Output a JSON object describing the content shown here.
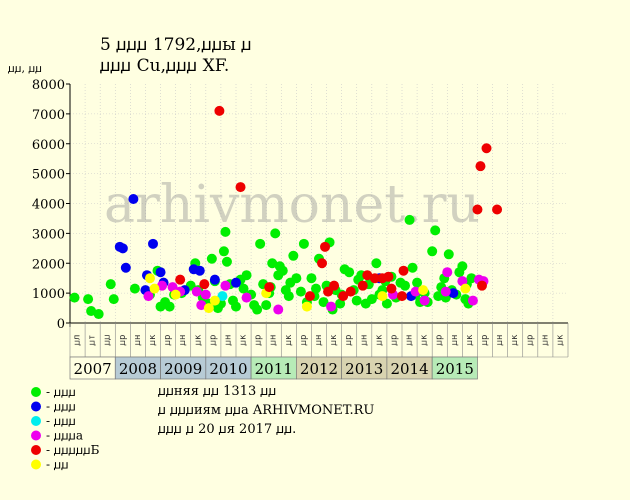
{
  "header": {
    "title_line1": "5 ꙡꙡꙡ 1792,ꙡꙡы ꙡ",
    "title_line2": "ꙡꙡꙡ Cu,ꙡꙡꙡ XF."
  },
  "watermark": "arhivmonet.ru",
  "info": {
    "line1": "ꙡꙡняя ꙡꙡ 1313 ꙡꙡ",
    "line2": "ꙡ ꙡꙡꙡиям ꙡꙡа ARHIVMONET.RU",
    "line3": "ꙡꙡꙡ ꙡ 20 ꙡя 2017 ꙡꙡ."
  },
  "legend": [
    {
      "key": "g",
      "label": "- ꙡꙡꙡ",
      "color": "#00EE00"
    },
    {
      "key": "b",
      "label": "- ꙡꙡꙡ",
      "color": "#0000EE"
    },
    {
      "key": "c",
      "label": "- ꙡꙡꙡ",
      "color": "#00EEEE"
    },
    {
      "key": "m",
      "label": "- ꙡꙡꙡа",
      "color": "#EE00EE"
    },
    {
      "key": "r",
      "label": "- ꙡꙡꙡꙡꙡБ",
      "color": "#EE0000"
    },
    {
      "key": "y",
      "label": "- ꙡꙡ",
      "color": "#FFFF00"
    }
  ],
  "chart_data": {
    "type": "scatter",
    "ylabel": "ꙡꙡ, ꙡꙡ",
    "ylim": [
      0,
      8000
    ],
    "yticks": [
      0,
      1000,
      2000,
      3000,
      4000,
      5000,
      6000,
      7000,
      8000
    ],
    "x_range": [
      0,
      33
    ],
    "grid": true,
    "months": [
      "ꙡл",
      "ꙡт",
      "ꙡꙡ",
      "ꙡр",
      "ꙡн",
      "ꙡк",
      "ꙡр",
      "ꙡн",
      "ꙡк",
      "ꙡр",
      "ꙡн",
      "ꙡк",
      "ꙡр",
      "ꙡн",
      "ꙡк",
      "ꙡр",
      "ꙡн",
      "ꙡк",
      "ꙡр",
      "ꙡн",
      "ꙡк",
      "ꙡр",
      "ꙡн",
      "ꙡк",
      "ꙡр",
      "ꙡн",
      "ꙡк",
      "ꙡр",
      "ꙡн",
      "ꙡк",
      "ꙡр",
      "ꙡн",
      "ꙡк"
    ],
    "years": [
      {
        "label": "2007",
        "start": 0,
        "end": 3,
        "color": "#FFFFE1"
      },
      {
        "label": "2008",
        "start": 3,
        "end": 6,
        "color": "#B7CBD5"
      },
      {
        "label": "2009",
        "start": 6,
        "end": 9,
        "color": "#B7CBD5"
      },
      {
        "label": "2010",
        "start": 9,
        "end": 12,
        "color": "#B7CBD5"
      },
      {
        "label": "2011",
        "start": 12,
        "end": 15,
        "color": "#B7EBB7"
      },
      {
        "label": "2012",
        "start": 15,
        "end": 18,
        "color": "#D8D3B0"
      },
      {
        "label": "2013",
        "start": 18,
        "end": 21,
        "color": "#D8D3B0"
      },
      {
        "label": "2014",
        "start": 21,
        "end": 24,
        "color": "#D8D3B0"
      },
      {
        "label": "2015",
        "start": 24,
        "end": 27,
        "color": "#B7EBB7"
      }
    ],
    "series": {
      "g": [
        [
          0.3,
          850
        ],
        [
          1.2,
          800
        ],
        [
          1.4,
          400
        ],
        [
          1.9,
          300
        ],
        [
          2.7,
          1300
        ],
        [
          2.9,
          800
        ],
        [
          4.3,
          1150
        ],
        [
          5.3,
          950
        ],
        [
          5.8,
          1750
        ],
        [
          6.0,
          550
        ],
        [
          6.3,
          700
        ],
        [
          6.6,
          550
        ],
        [
          6.9,
          950
        ],
        [
          7.4,
          1000
        ],
        [
          8.0,
          1250
        ],
        [
          8.3,
          2000
        ],
        [
          8.5,
          1100
        ],
        [
          8.8,
          850
        ],
        [
          9.2,
          650
        ],
        [
          9.4,
          2150
        ],
        [
          9.6,
          1400
        ],
        [
          9.8,
          500
        ],
        [
          10.0,
          650
        ],
        [
          10.2,
          2400
        ],
        [
          10.3,
          3050
        ],
        [
          10.4,
          2050
        ],
        [
          10.6,
          1300
        ],
        [
          10.8,
          750
        ],
        [
          11.0,
          550
        ],
        [
          11.3,
          1450
        ],
        [
          11.5,
          1150
        ],
        [
          11.7,
          1600
        ],
        [
          12.0,
          950
        ],
        [
          12.2,
          600
        ],
        [
          12.4,
          450
        ],
        [
          12.6,
          2650
        ],
        [
          12.8,
          1300
        ],
        [
          13.0,
          600
        ],
        [
          13.2,
          1000
        ],
        [
          13.4,
          2000
        ],
        [
          13.6,
          3000
        ],
        [
          13.8,
          1600
        ],
        [
          14.1,
          1750
        ],
        [
          14.3,
          1100
        ],
        [
          14.5,
          900
        ],
        [
          14.8,
          2250
        ],
        [
          15.0,
          1500
        ],
        [
          15.3,
          1050
        ],
        [
          15.5,
          2650
        ],
        [
          15.7,
          700
        ],
        [
          16.0,
          1500
        ],
        [
          16.2,
          900
        ],
        [
          16.5,
          2150
        ],
        [
          16.8,
          700
        ],
        [
          17.0,
          1250
        ],
        [
          17.2,
          2700
        ],
        [
          17.4,
          450
        ],
        [
          17.6,
          1100
        ],
        [
          17.9,
          650
        ],
        [
          18.2,
          1800
        ],
        [
          18.5,
          1700
        ],
        [
          18.8,
          1100
        ],
        [
          19.0,
          750
        ],
        [
          19.3,
          1600
        ],
        [
          19.6,
          650
        ],
        [
          19.8,
          1300
        ],
        [
          20.0,
          800
        ],
        [
          20.3,
          2000
        ],
        [
          20.5,
          950
        ],
        [
          20.7,
          1100
        ],
        [
          21.0,
          650
        ],
        [
          21.3,
          1550
        ],
        [
          21.6,
          850
        ],
        [
          21.9,
          1350
        ],
        [
          22.2,
          1250
        ],
        [
          22.5,
          3450
        ],
        [
          22.7,
          1850
        ],
        [
          22.9,
          950
        ],
        [
          23.2,
          700
        ],
        [
          23.5,
          1000
        ],
        [
          23.7,
          700
        ],
        [
          24.0,
          2400
        ],
        [
          24.2,
          3100
        ],
        [
          24.4,
          900
        ],
        [
          24.6,
          1200
        ],
        [
          24.8,
          1500
        ],
        [
          25.1,
          2300
        ],
        [
          25.3,
          1100
        ],
        [
          25.6,
          950
        ],
        [
          25.8,
          1700
        ],
        [
          26.0,
          1900
        ],
        [
          26.2,
          800
        ],
        [
          26.4,
          650
        ],
        [
          26.6,
          1500
        ],
        [
          13.3,
          1200
        ],
        [
          13.9,
          1900
        ],
        [
          14.6,
          1350
        ],
        [
          16.3,
          1150
        ],
        [
          18.0,
          950
        ],
        [
          19.1,
          1450
        ],
        [
          20.9,
          1400
        ],
        [
          23.0,
          1350
        ],
        [
          24.9,
          850
        ],
        [
          26.3,
          1300
        ]
      ],
      "b": [
        [
          4.2,
          4150
        ],
        [
          3.3,
          2550
        ],
        [
          3.5,
          2500
        ],
        [
          3.7,
          1850
        ],
        [
          5.5,
          2650
        ],
        [
          5.1,
          1600
        ],
        [
          5.0,
          1100
        ],
        [
          6.0,
          1700
        ],
        [
          6.2,
          1350
        ],
        [
          7.6,
          1100
        ],
        [
          8.2,
          1800
        ],
        [
          8.6,
          1750
        ],
        [
          9.6,
          1450
        ],
        [
          11.0,
          1350
        ],
        [
          20.5,
          1500
        ],
        [
          22.6,
          900
        ],
        [
          25.4,
          1000
        ]
      ],
      "c": [
        [
          10.1,
          900
        ]
      ],
      "m": [
        [
          5.2,
          900
        ],
        [
          6.1,
          1250
        ],
        [
          6.8,
          1200
        ],
        [
          7.3,
          1050
        ],
        [
          8.4,
          1050
        ],
        [
          8.7,
          600
        ],
        [
          9.0,
          950
        ],
        [
          10.3,
          1250
        ],
        [
          11.7,
          850
        ],
        [
          13.8,
          450
        ],
        [
          17.3,
          550
        ],
        [
          21.4,
          950
        ],
        [
          22.9,
          1050
        ],
        [
          23.5,
          750
        ],
        [
          24.9,
          1050
        ],
        [
          25.0,
          1700
        ],
        [
          26.0,
          1400
        ],
        [
          26.7,
          750
        ],
        [
          27.1,
          1450
        ],
        [
          27.4,
          1400
        ]
      ],
      "r": [
        [
          9.9,
          7100
        ],
        [
          11.3,
          4550
        ],
        [
          7.3,
          1450
        ],
        [
          8.9,
          1300
        ],
        [
          13.2,
          1200
        ],
        [
          15.9,
          900
        ],
        [
          16.7,
          2000
        ],
        [
          16.9,
          2550
        ],
        [
          17.1,
          1050
        ],
        [
          17.5,
          1250
        ],
        [
          18.1,
          900
        ],
        [
          18.6,
          1050
        ],
        [
          19.4,
          1250
        ],
        [
          19.7,
          1600
        ],
        [
          20.2,
          1500
        ],
        [
          20.7,
          1500
        ],
        [
          21.1,
          1550
        ],
        [
          21.3,
          1150
        ],
        [
          22.0,
          900
        ],
        [
          22.1,
          1750
        ],
        [
          27.0,
          3800
        ],
        [
          27.2,
          5250
        ],
        [
          27.6,
          5850
        ],
        [
          28.3,
          3800
        ],
        [
          27.3,
          1250
        ]
      ],
      "y": [
        [
          5.3,
          1500
        ],
        [
          5.6,
          1150
        ],
        [
          7.0,
          950
        ],
        [
          9.2,
          500
        ],
        [
          9.6,
          750
        ],
        [
          13.0,
          1000
        ],
        [
          15.7,
          550
        ],
        [
          20.7,
          900
        ],
        [
          23.4,
          1100
        ],
        [
          26.2,
          1150
        ]
      ]
    }
  }
}
